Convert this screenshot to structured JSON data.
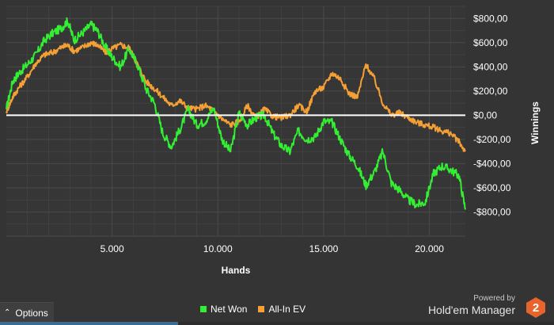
{
  "chart_data": {
    "type": "line",
    "xlabel": "Hands",
    "ylabel": "Winnings",
    "xlim": [
      0,
      21700
    ],
    "ylim": [
      -1000,
      900
    ],
    "x_ticks": [
      5000,
      10000,
      15000,
      20000
    ],
    "x_tick_labels": [
      "5.000",
      "10.000",
      "15.000",
      "20.000"
    ],
    "y_ticks": [
      800,
      600,
      400,
      200,
      0,
      -200,
      -400,
      -600,
      -800
    ],
    "y_tick_labels": [
      "$800,00",
      "$600,00",
      "$400,00",
      "$200,00",
      "$0,00",
      "-$200,00",
      "-$400,00",
      "-$600,00",
      "-$800,00"
    ],
    "legend_position": "bottom-center",
    "grid": true,
    "series": [
      {
        "name": "Net Won",
        "color": "#33ee33",
        "x": [
          0,
          300,
          600,
          1000,
          1400,
          1800,
          2200,
          2600,
          2900,
          3200,
          3600,
          4000,
          4300,
          4700,
          5000,
          5400,
          5800,
          6200,
          6600,
          7000,
          7400,
          7800,
          8200,
          8600,
          9000,
          9400,
          9800,
          10200,
          10600,
          11000,
          11400,
          11800,
          12200,
          12600,
          13000,
          13400,
          13800,
          14200,
          14600,
          15000,
          15400,
          15800,
          16200,
          16600,
          17000,
          17400,
          17800,
          18200,
          18600,
          19000,
          19400,
          19800,
          20200,
          20600,
          21000,
          21400,
          21700
        ],
        "values": [
          50,
          280,
          350,
          420,
          500,
          620,
          680,
          720,
          780,
          620,
          680,
          750,
          700,
          560,
          480,
          400,
          550,
          420,
          220,
          100,
          -150,
          -260,
          -120,
          50,
          -80,
          -50,
          60,
          -200,
          -300,
          20,
          -80,
          -20,
          0,
          -150,
          -250,
          -300,
          -130,
          -200,
          -180,
          -50,
          -60,
          -200,
          -330,
          -420,
          -580,
          -470,
          -300,
          -560,
          -620,
          -700,
          -740,
          -720,
          -480,
          -420,
          -450,
          -500,
          -780
        ],
        "noise": 35
      },
      {
        "name": "All-In EV",
        "color": "#f5a034",
        "x": [
          0,
          300,
          600,
          1000,
          1400,
          1800,
          2200,
          2600,
          2900,
          3200,
          3600,
          4000,
          4300,
          4700,
          5000,
          5400,
          5800,
          6200,
          6600,
          7000,
          7400,
          7800,
          8200,
          8600,
          9000,
          9400,
          9800,
          10200,
          10600,
          11000,
          11400,
          11800,
          12200,
          12600,
          13000,
          13400,
          13800,
          14200,
          14600,
          15000,
          15400,
          15800,
          16200,
          16600,
          17000,
          17400,
          17800,
          18200,
          18600,
          19000,
          19400,
          19800,
          20200,
          20600,
          21000,
          21400,
          21700
        ],
        "values": [
          30,
          150,
          230,
          320,
          430,
          500,
          520,
          560,
          580,
          530,
          560,
          600,
          580,
          520,
          550,
          580,
          560,
          420,
          280,
          220,
          150,
          80,
          120,
          60,
          50,
          80,
          40,
          -30,
          -80,
          -50,
          80,
          -20,
          50,
          -10,
          -20,
          0,
          80,
          30,
          200,
          230,
          350,
          300,
          180,
          150,
          420,
          300,
          100,
          0,
          20,
          -20,
          -60,
          -80,
          -100,
          -130,
          -150,
          -220,
          -300
        ],
        "noise": 25
      }
    ]
  },
  "legend": {
    "items": [
      {
        "label": "Net Won",
        "color": "#33ee33"
      },
      {
        "label": "All-In EV",
        "color": "#f5a034"
      }
    ]
  },
  "options": {
    "label": "Options",
    "chevron": "chevron-up-icon"
  },
  "branding": {
    "powered_by": "Powered by",
    "name": "Hold'em Manager",
    "logo_text": "2",
    "logo_color": "#e8642c"
  },
  "colors": {
    "plot_bg": "#343434",
    "grid": "#4a4a4a",
    "zero_line": "#ffffff"
  }
}
